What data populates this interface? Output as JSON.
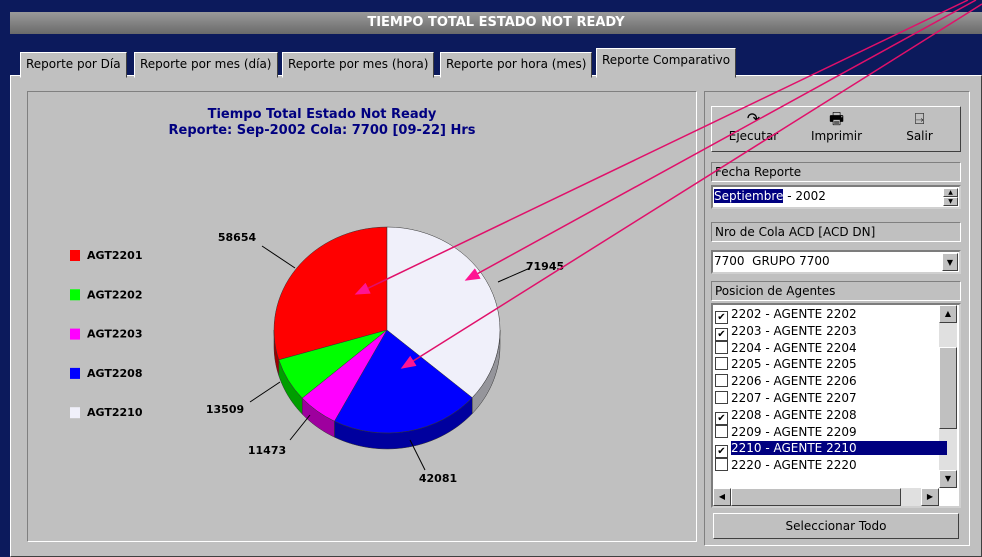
{
  "window": {
    "title": "TIEMPO TOTAL ESTADO NOT READY"
  },
  "tabs": [
    "Reporte por Día",
    "Reporte por mes (día)",
    "Reporte por mes (hora)",
    "Reporte por hora (mes)",
    "Reporte Comparativo"
  ],
  "active_tab": 4,
  "chart_data": {
    "type": "pie",
    "title": "Tiempo Total Estado Not Ready",
    "subtitle": "Reporte: Sep-2002 Cola: 7700 [09-22] Hrs",
    "categories": [
      "AGT2201",
      "AGT2202",
      "AGT2203",
      "AGT2208",
      "AGT2210"
    ],
    "values": [
      58654,
      13509,
      11473,
      42081,
      71945
    ],
    "colors": [
      "#ff0000",
      "#00ff00",
      "#ff00ff",
      "#0000ff",
      "#f0f0fa"
    ],
    "legend": "left"
  },
  "toolbar": [
    "Ejecutar",
    "Imprimir",
    "Salir"
  ],
  "fecha": {
    "label": "Fecha Reporte",
    "month": "Septiembre",
    "rest": "- 2002"
  },
  "cola": {
    "label": "Nro de Cola ACD [ACD DN]",
    "value": "7700  GRUPO 7700"
  },
  "agentes": {
    "label": "Posicion de Agentes",
    "selected": 8,
    "items": [
      {
        "text": "2202 - AGENTE 2202",
        "checked": true
      },
      {
        "text": "2203 - AGENTE 2203",
        "checked": true
      },
      {
        "text": "2204 - AGENTE 2204",
        "checked": false
      },
      {
        "text": "2205 - AGENTE 2205",
        "checked": false
      },
      {
        "text": "2206 - AGENTE 2206",
        "checked": false
      },
      {
        "text": "2207 - AGENTE 2207",
        "checked": false
      },
      {
        "text": "2208 - AGENTE 2208",
        "checked": true
      },
      {
        "text": "2209 - AGENTE 2209",
        "checked": false
      },
      {
        "text": "2210 - AGENTE 2210",
        "checked": true
      },
      {
        "text": "2220 - AGENTE 2220",
        "checked": false
      }
    ]
  },
  "select_all": "Seleccionar Todo"
}
